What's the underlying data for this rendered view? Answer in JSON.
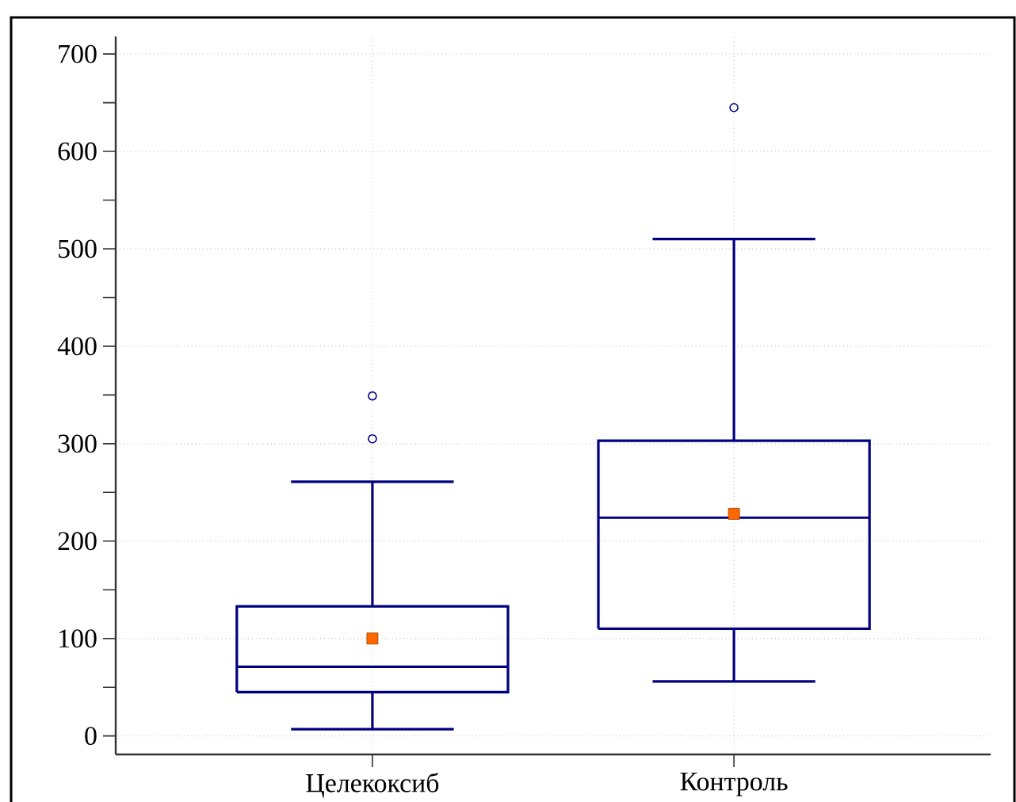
{
  "chart_data": {
    "type": "box",
    "categories": [
      "Целекоксиб",
      "Контроль"
    ],
    "series": [
      {
        "color": "#000080",
        "boxes": [
          {
            "low": 7,
            "q1": 45,
            "median": 71,
            "q3": 133,
            "high": 261,
            "outliers": [
              305,
              349
            ]
          },
          {
            "low": 56,
            "q1": 110,
            "median": 224,
            "q3": 303,
            "high": 510,
            "outliers": [
              645
            ]
          }
        ]
      },
      {
        "type": "scatter",
        "color": "#ff6600",
        "marker": "square",
        "x": [
          "Целекоксиб",
          "Контроль"
        ],
        "values": [
          100,
          228
        ]
      }
    ],
    "ylim": [
      -19,
      718
    ],
    "yticks": [
      0,
      100,
      200,
      300,
      400,
      500,
      600,
      700
    ],
    "grid": true
  }
}
